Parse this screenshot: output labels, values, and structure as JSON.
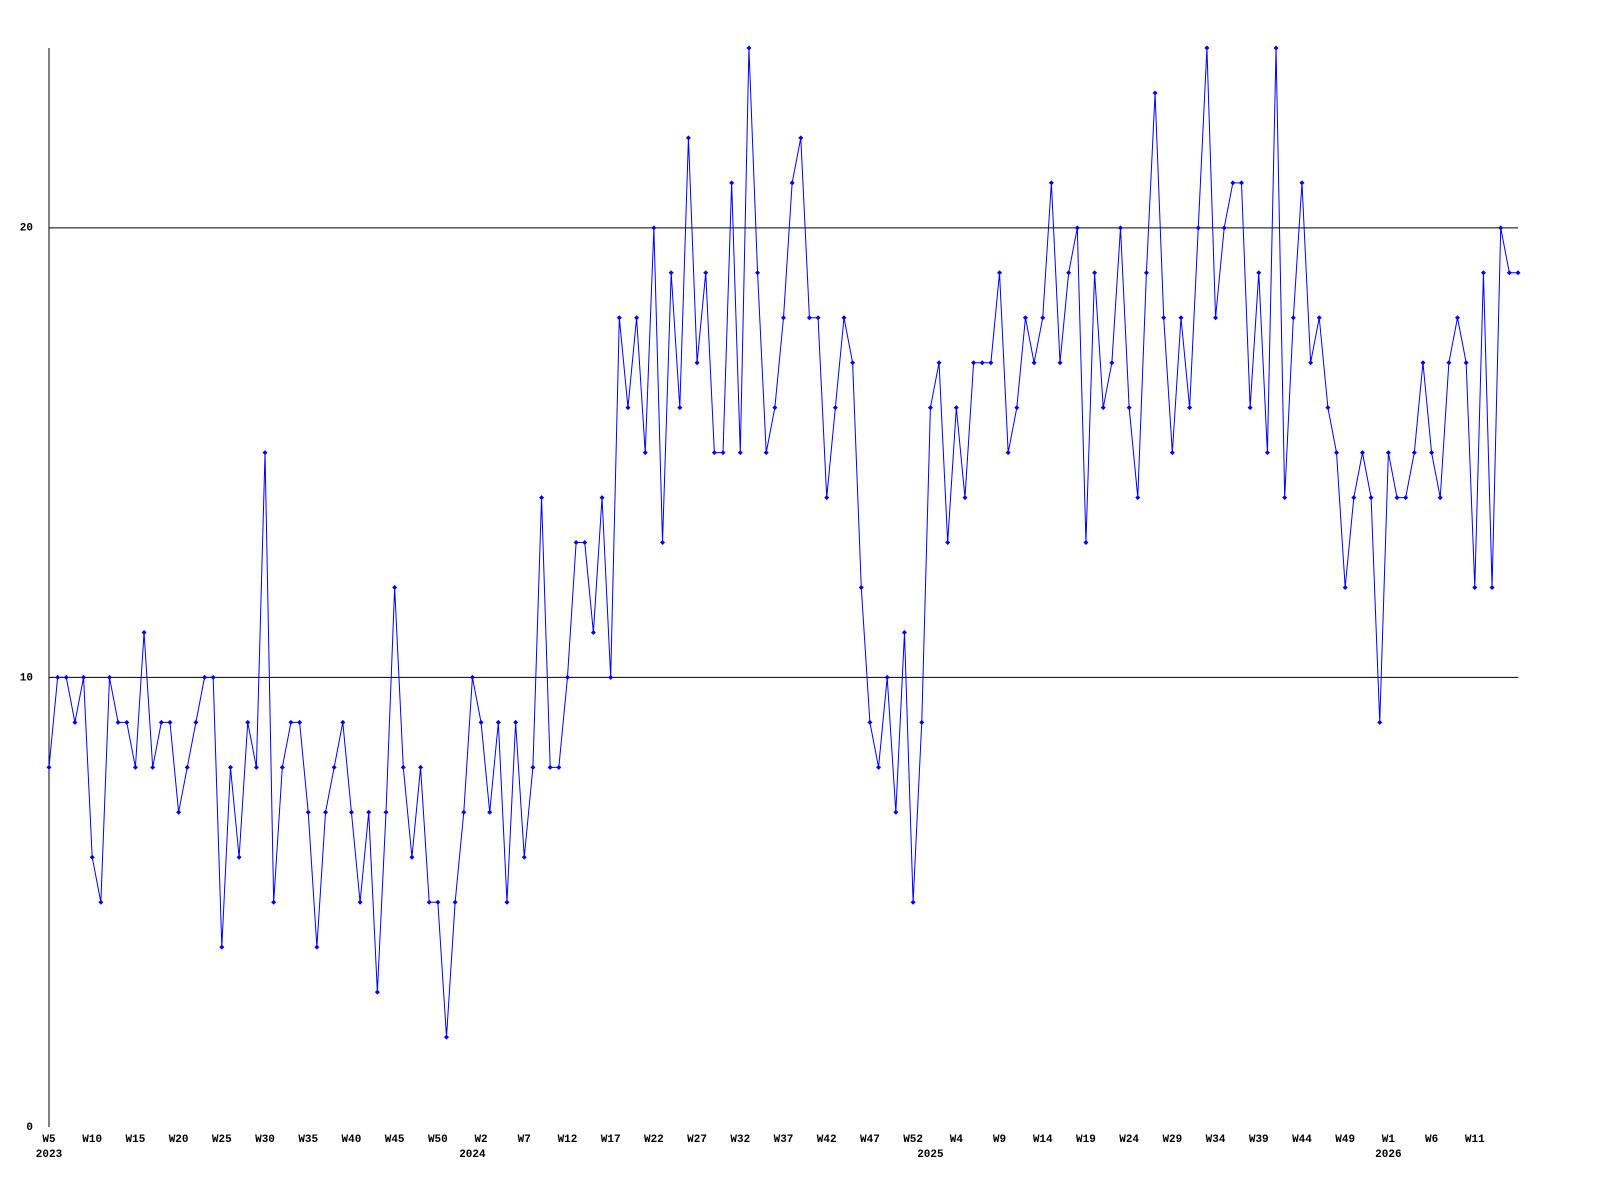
{
  "chart_data": {
    "type": "line",
    "categories": [
      "W5",
      null,
      null,
      null,
      null,
      "W10",
      null,
      null,
      null,
      null,
      "W15",
      null,
      null,
      null,
      null,
      "W20",
      null,
      null,
      null,
      null,
      "W25",
      null,
      null,
      null,
      null,
      "W30",
      null,
      null,
      null,
      null,
      "W35",
      null,
      null,
      null,
      null,
      "W40",
      null,
      null,
      null,
      null,
      "W45",
      null,
      null,
      null,
      null,
      "W50",
      null,
      null,
      null,
      null,
      "W2",
      null,
      null,
      null,
      null,
      "W7",
      null,
      null,
      null,
      null,
      "W12",
      null,
      null,
      null,
      null,
      "W17",
      null,
      null,
      null,
      null,
      "W22",
      null,
      null,
      null,
      null,
      "W27",
      null,
      null,
      null,
      null,
      "W32",
      null,
      null,
      null,
      null,
      "W37",
      null,
      null,
      null,
      null,
      "W42",
      null,
      null,
      null,
      null,
      "W47",
      null,
      null,
      null,
      null,
      "W52",
      null,
      null,
      null,
      null,
      "W4",
      null,
      null,
      null,
      null,
      "W9",
      null,
      null,
      null,
      null,
      "W14",
      null,
      null,
      null,
      null,
      "W19",
      null,
      null,
      null,
      null,
      "W24",
      null,
      null,
      null,
      null,
      "W29",
      null,
      null,
      null,
      null,
      "W34",
      null,
      null,
      null,
      null,
      "W39",
      null,
      null,
      null,
      null,
      "W44",
      null,
      null,
      null,
      null,
      "W49",
      null,
      null,
      null,
      null,
      "W1",
      null,
      null,
      null,
      null,
      "W6",
      null,
      null,
      null,
      null,
      "W11",
      null,
      null,
      null,
      null,
      null
    ],
    "category_years": [
      "2023",
      null,
      null,
      null,
      null,
      null,
      null,
      null,
      null,
      null,
      null,
      null,
      null,
      null,
      null,
      null,
      null,
      null,
      null,
      null,
      null,
      null,
      null,
      null,
      null,
      null,
      null,
      null,
      null,
      null,
      null,
      null,
      null,
      null,
      null,
      null,
      null,
      null,
      null,
      null,
      null,
      null,
      null,
      null,
      null,
      null,
      null,
      null,
      null,
      "2024",
      null,
      null,
      null,
      null,
      null,
      null,
      null,
      null,
      null,
      null,
      null,
      null,
      null,
      null,
      null,
      null,
      null,
      null,
      null,
      null,
      null,
      null,
      null,
      null,
      null,
      null,
      null,
      null,
      null,
      null,
      null,
      null,
      null,
      null,
      null,
      null,
      null,
      null,
      null,
      null,
      null,
      null,
      null,
      null,
      null,
      null,
      null,
      null,
      null,
      null,
      null,
      null,
      "2025",
      null,
      null,
      null,
      null,
      null,
      null,
      null,
      null,
      null,
      null,
      null,
      null,
      null,
      null,
      null,
      null,
      null,
      null,
      null,
      null,
      null,
      null,
      null,
      null,
      null,
      null,
      null,
      null,
      null,
      null,
      null,
      null,
      null,
      null,
      null,
      null,
      null,
      null,
      null,
      null,
      null,
      null,
      null,
      null,
      null,
      null,
      null,
      null,
      null,
      null,
      null,
      null,
      "2026",
      null,
      null,
      null,
      null,
      null,
      null,
      null,
      null,
      null,
      null,
      null,
      null,
      null,
      null,
      null
    ],
    "values": [
      8,
      10,
      10,
      9,
      10,
      6,
      5,
      10,
      9,
      9,
      8,
      11,
      8,
      9,
      9,
      7,
      8,
      9,
      10,
      10,
      4,
      8,
      6,
      9,
      8,
      15,
      5,
      8,
      9,
      9,
      7,
      4,
      7,
      8,
      9,
      7,
      5,
      7,
      3,
      7,
      12,
      8,
      6,
      8,
      5,
      5,
      2,
      5,
      7,
      10,
      9,
      7,
      9,
      5,
      9,
      6,
      8,
      14,
      8,
      8,
      10,
      13,
      13,
      11,
      14,
      10,
      18,
      16,
      18,
      15,
      20,
      13,
      19,
      16,
      22,
      17,
      19,
      15,
      15,
      21,
      15,
      24,
      19,
      15,
      16,
      18,
      21,
      22,
      18,
      18,
      14,
      16,
      18,
      17,
      12,
      9,
      8,
      10,
      7,
      11,
      5,
      9,
      16,
      17,
      13,
      16,
      14,
      17,
      17,
      17,
      19,
      15,
      16,
      18,
      17,
      18,
      21,
      17,
      19,
      20,
      13,
      19,
      16,
      17,
      20,
      16,
      14,
      19,
      23,
      18,
      15,
      18,
      16,
      20,
      24,
      18,
      20,
      21,
      21,
      16,
      19,
      15,
      24,
      14,
      18,
      21,
      17,
      18,
      16,
      15,
      12,
      14,
      15,
      14,
      9,
      15,
      14,
      14,
      15,
      17,
      15,
      14,
      17,
      18,
      17,
      12,
      19,
      12,
      20,
      19,
      19
    ],
    "color": "#0000ff",
    "ylim": [
      0,
      24
    ],
    "yticks": [
      0,
      10,
      20
    ],
    "grid": true
  }
}
